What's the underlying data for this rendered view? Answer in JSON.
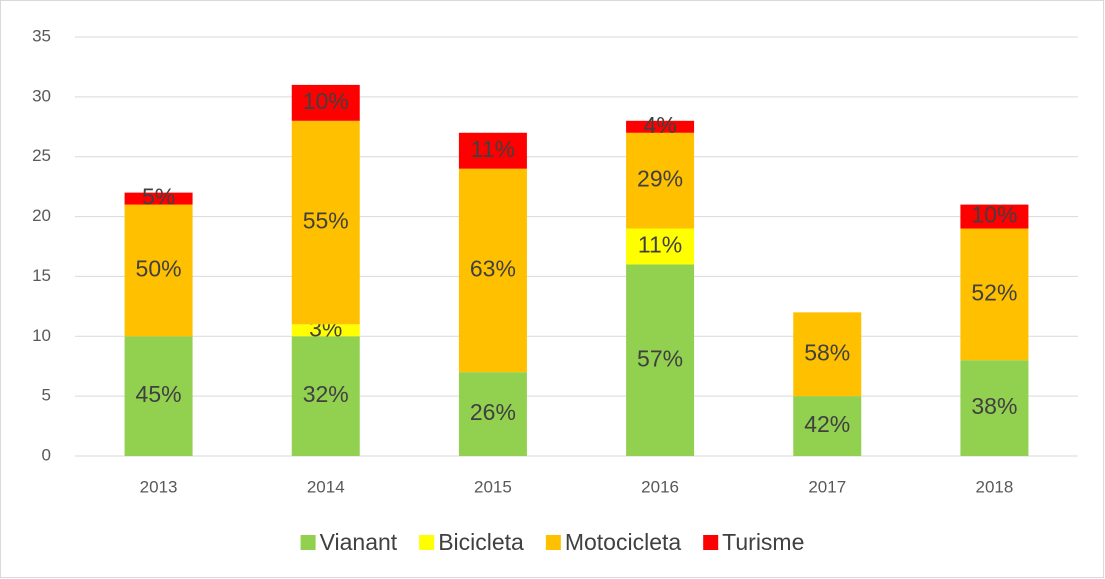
{
  "chart_data": {
    "type": "stacked_bar",
    "categories": [
      "2013",
      "2014",
      "2015",
      "2016",
      "2017",
      "2018"
    ],
    "series": [
      {
        "name": "Vianant",
        "color": "#92d050",
        "values": [
          10,
          10,
          7,
          16,
          5,
          8
        ],
        "value_labels": [
          "45%",
          "32%",
          "26%",
          "57%",
          "42%",
          "38%"
        ]
      },
      {
        "name": "Bicicleta",
        "color": "#ffff00",
        "values": [
          0,
          1,
          0,
          3,
          0,
          0
        ],
        "value_labels": [
          null,
          "3%",
          null,
          "11%",
          null,
          null
        ]
      },
      {
        "name": "Motocicleta",
        "color": "#ffc000",
        "values": [
          11,
          17,
          17,
          8,
          7,
          11
        ],
        "value_labels": [
          "50%",
          "55%",
          "63%",
          "29%",
          "58%",
          "52%"
        ]
      },
      {
        "name": "Turisme",
        "color": "#ff0000",
        "values": [
          1,
          3,
          3,
          1,
          0,
          2
        ],
        "value_labels": [
          "5%",
          "10%",
          "11%",
          "4%",
          null,
          "10%"
        ]
      }
    ],
    "ylim": [
      0,
      35
    ],
    "yticks": [
      0,
      5,
      10,
      15,
      20,
      25,
      30,
      35
    ],
    "grid": true,
    "legend": "bottom"
  }
}
